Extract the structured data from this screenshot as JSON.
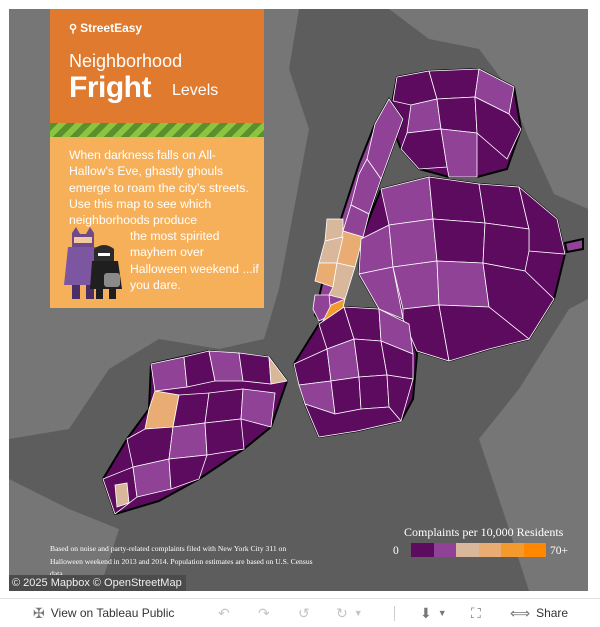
{
  "panel": {
    "brand": "StreetEasy",
    "title_line1": "Neighborhood",
    "title_big": "Fright",
    "title_line2_rest": "Levels",
    "description_top": "When darkness falls on All-Hallow's Eve, ghastly ghouls emerge to roam the city's streets. Use this map to see which neighborhoods produce",
    "description_bottom": "the most spirited mayhem over Halloween weekend ...if you dare."
  },
  "legend": {
    "title": "Complaints per 10,000 Residents",
    "min_label": "0",
    "max_label": "70+",
    "colors": [
      "#5c0b5f",
      "#8f4296",
      "#d9b79a",
      "#e9ad73",
      "#f49a2d",
      "#ff8800"
    ]
  },
  "map": {
    "water_color": "#5d5d5d",
    "land_color": "#767676",
    "boundary_color": "#ffffff",
    "low_color": "#5c0b5f",
    "mid_color": "#8f4296",
    "high_colors": [
      "#d9b79a",
      "#e9ad73",
      "#f49a2d"
    ]
  },
  "footnote": "Based on noise and party-related complaints filed with New York City 311 on Halloween weekend in 2013 and 2014. Population estimates are based on U.S. Census data.",
  "attribution": "© 2025 Mapbox  © OpenStreetMap",
  "toolbar": {
    "view_label": "View on Tableau Public",
    "share_label": "Share"
  }
}
